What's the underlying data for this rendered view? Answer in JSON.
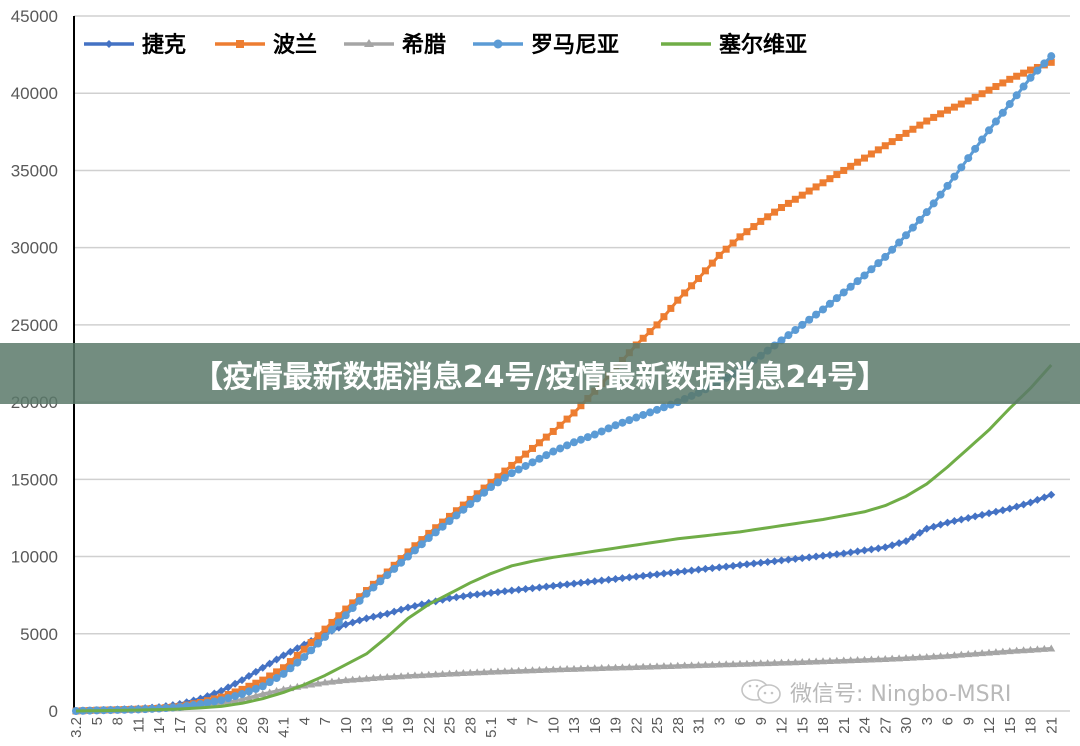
{
  "banner": {
    "text": "【疫情最新数据消息24号/疫情最新数据消息24号】"
  },
  "watermark": {
    "text": "微信号: Ningbo-MSRI",
    "icon": "wechat-icon"
  },
  "chart_data": {
    "type": "line",
    "title": "",
    "xlabel": "",
    "ylabel": "",
    "ylim": [
      0,
      45000
    ],
    "yticks": [
      0,
      5000,
      10000,
      15000,
      20000,
      25000,
      30000,
      35000,
      40000,
      45000
    ],
    "grid": true,
    "legend_position": "top-left",
    "categories": [
      "3.2",
      "5",
      "8",
      "11",
      "14",
      "17",
      "20",
      "23",
      "26",
      "29",
      "4.1",
      "4",
      "7",
      "10",
      "13",
      "16",
      "19",
      "22",
      "25",
      "28",
      "5.1",
      "4",
      "7",
      "10",
      "13",
      "16",
      "19",
      "22",
      "25",
      "28",
      "31",
      "3",
      "6",
      "9",
      "12",
      "15",
      "18",
      "21",
      "24",
      "27",
      "30",
      "3",
      "6",
      "9",
      "12",
      "15",
      "18",
      "21"
    ],
    "series": [
      {
        "name": "捷克",
        "color": "#4472c4",
        "marker": "diamond",
        "values": [
          0,
          50,
          100,
          150,
          250,
          450,
          800,
          1300,
          2000,
          2800,
          3600,
          4300,
          5000,
          5600,
          6000,
          6300,
          6700,
          7000,
          7300,
          7500,
          7650,
          7800,
          7950,
          8100,
          8250,
          8400,
          8550,
          8700,
          8850,
          9000,
          9150,
          9300,
          9450,
          9600,
          9750,
          9900,
          10050,
          10200,
          10400,
          10600,
          11000,
          11800,
          12200,
          12500,
          12800,
          13100,
          13500,
          14000
        ]
      },
      {
        "name": "波兰",
        "color": "#ed7d31",
        "marker": "square",
        "values": [
          0,
          50,
          80,
          120,
          180,
          300,
          550,
          900,
          1400,
          2000,
          2800,
          4000,
          5300,
          6600,
          7800,
          9000,
          10300,
          11500,
          12600,
          13700,
          14800,
          15900,
          17000,
          18100,
          19300,
          20700,
          22200,
          23700,
          25000,
          26600,
          28000,
          29500,
          30700,
          31700,
          32600,
          33400,
          34200,
          35000,
          35800,
          36600,
          37400,
          38200,
          38900,
          39500,
          40200,
          40900,
          41500,
          42000
        ]
      },
      {
        "name": "希腊",
        "color": "#a5a5a5",
        "marker": "triangle",
        "values": [
          0,
          50,
          80,
          110,
          150,
          220,
          350,
          500,
          750,
          1100,
          1400,
          1650,
          1850,
          2000,
          2100,
          2200,
          2280,
          2350,
          2420,
          2480,
          2540,
          2590,
          2640,
          2690,
          2730,
          2770,
          2810,
          2850,
          2890,
          2930,
          2970,
          3010,
          3050,
          3090,
          3130,
          3170,
          3220,
          3270,
          3320,
          3370,
          3430,
          3500,
          3580,
          3680,
          3780,
          3880,
          3960,
          4050
        ]
      },
      {
        "name": "罗马尼亚",
        "color": "#5b9bd5",
        "marker": "circle",
        "values": [
          0,
          40,
          70,
          100,
          160,
          260,
          450,
          700,
          1100,
          1600,
          2400,
          3500,
          4800,
          6200,
          7600,
          8800,
          10000,
          11200,
          12300,
          13400,
          14500,
          15400,
          16100,
          16800,
          17400,
          17900,
          18500,
          19000,
          19500,
          20000,
          20600,
          21300,
          22100,
          23000,
          24000,
          25000,
          26000,
          27100,
          28200,
          29400,
          30800,
          32300,
          34000,
          35800,
          37600,
          39300,
          41000,
          42400
        ]
      },
      {
        "name": "塞尔维亚",
        "color": "#70ad47",
        "marker": "none",
        "values": [
          0,
          20,
          40,
          60,
          90,
          130,
          200,
          300,
          500,
          800,
          1200,
          1700,
          2300,
          3000,
          3700,
          4800,
          6000,
          6900,
          7600,
          8300,
          8900,
          9400,
          9700,
          9950,
          10150,
          10350,
          10550,
          10750,
          10950,
          11150,
          11300,
          11450,
          11600,
          11800,
          12000,
          12200,
          12400,
          12650,
          12900,
          13300,
          13900,
          14700,
          15800,
          17000,
          18200,
          19600,
          20900,
          22400
        ]
      }
    ]
  }
}
